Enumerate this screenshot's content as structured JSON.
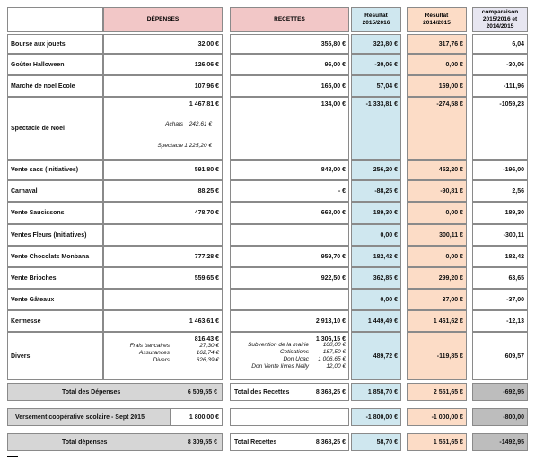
{
  "header": {
    "expenses": "DÉPENSES",
    "income": "RECETTES",
    "result_2015_2016": "Résultat 2015/2016",
    "result_2014_2015": "Résultat 2014/2015",
    "comparison": "comparaison 2015/2016 et 2014/2015"
  },
  "rows": [
    {
      "label": "Bourse aux jouets",
      "expenses": "32,00 €",
      "income": "355,80 €",
      "result_2015_2016": "323,80 €",
      "result_2014_2015": "317,76 €",
      "comparison": "6,04"
    },
    {
      "label": "Goûter Halloween",
      "expenses": "126,06 €",
      "income": "96,00 €",
      "result_2015_2016": "-30,06 €",
      "result_2014_2015": "0,00 €",
      "comparison": "-30,06"
    },
    {
      "label": "Marché de noel Ecole",
      "expenses": "107,96 €",
      "income": "165,00 €",
      "result_2015_2016": "57,04 €",
      "result_2014_2015": "169,00 €",
      "comparison": "-111,96"
    },
    {
      "label": "Spectacle de Noël",
      "expenses": "1 467,81 €",
      "expenses_details": [
        {
          "label": "Achats",
          "amount": "242,61 €"
        },
        {
          "label": "Spectacle",
          "amount": "1 225,20 €"
        }
      ],
      "income": "134,00 €",
      "result_2015_2016": "-1 333,81 €",
      "result_2014_2015": "-274,58 €",
      "comparison": "-1059,23"
    },
    {
      "label": "Vente sacs (Initiatives)",
      "expenses": "591,80 €",
      "income": "848,00 €",
      "result_2015_2016": "256,20 €",
      "result_2014_2015": "452,20 €",
      "comparison": "-196,00"
    },
    {
      "label": "Carnaval",
      "expenses": "88,25 €",
      "income": "-   €",
      "result_2015_2016": "-88,25 €",
      "result_2014_2015": "-90,81 €",
      "comparison": "2,56"
    },
    {
      "label": "Vente Saucissons",
      "expenses": "478,70 €",
      "income": "668,00 €",
      "result_2015_2016": "189,30 €",
      "result_2014_2015": "0,00 €",
      "comparison": "189,30"
    },
    {
      "label": "Ventes Fleurs (Initiatives)",
      "result_2015_2016": "0,00 €",
      "result_2014_2015": "300,11 €",
      "comparison": "-300,11"
    },
    {
      "label": "Vente Chocolats Monbana",
      "expenses": "777,28 €",
      "income": "959,70 €",
      "result_2015_2016": "182,42 €",
      "result_2014_2015": "0,00 €",
      "comparison": "182,42"
    },
    {
      "label": "Vente Brioches",
      "expenses": "559,65 €",
      "income": "922,50 €",
      "result_2015_2016": "362,85 €",
      "result_2014_2015": "299,20 €",
      "comparison": "63,65"
    },
    {
      "label": "Vente Gâteaux",
      "result_2015_2016": "0,00 €",
      "result_2014_2015": "37,00 €",
      "comparison": "-37,00"
    },
    {
      "label": "Kermesse",
      "expenses": "1 463,61 €",
      "income": "2 913,10 €",
      "result_2015_2016": "1 449,49 €",
      "result_2014_2015": "1 461,62 €",
      "comparison": "-12,13"
    },
    {
      "label": "Divers",
      "expenses": "816,43 €",
      "expenses_details": [
        {
          "label": "Frais bancaires",
          "amount": "27,30 €"
        },
        {
          "label": "Assurances",
          "amount": "162,74 €"
        },
        {
          "label": "Divers",
          "amount": "626,39 €"
        }
      ],
      "income": "1 306,15 €",
      "income_details": [
        {
          "label": "Subvention de la mairie",
          "amount": "100,00 €"
        },
        {
          "label": "Cotisations",
          "amount": "187,50 €"
        },
        {
          "label": "Don Ucac",
          "amount": "1 006,65 €"
        },
        {
          "label": "Don Vente livres Nelly",
          "amount": "12,00 €"
        }
      ],
      "result_2015_2016": "489,72 €",
      "result_2014_2015": "-119,85 €",
      "comparison": "609,57"
    }
  ],
  "totals": [
    {
      "label": "Total des Dépenses",
      "amount": "6 509,55 €",
      "income_label": "Total des Recettes",
      "income_amount": "8 368,25 €",
      "result_2015_2016": "1 858,70 €",
      "result_2014_2015": "2 551,65 €",
      "comparison": "-692,95"
    },
    {
      "label": "Versement coopérative scolaire - Sept 2015",
      "amount": "1 800,00 €",
      "result_2015_2016": "-1 800,00 €",
      "result_2014_2015": "-1 000,00 €",
      "comparison": "-800,00"
    },
    {
      "label": "Total dépenses",
      "amount": "8 309,55 €",
      "income_label": "Total Recettes",
      "income_amount": "8 368,25 €",
      "result_2015_2016": "58,70 €",
      "result_2014_2015": "1 551,65 €",
      "comparison": "-1492,95"
    }
  ]
}
